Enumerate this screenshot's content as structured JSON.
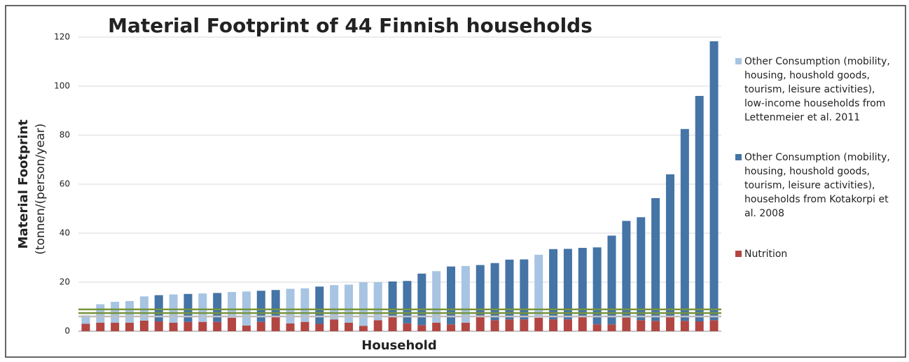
{
  "chart_data": {
    "type": "stacked_bar",
    "title": "Material Footprint of 44 Finnish households",
    "ylabel": "Material Footprint",
    "ylabel_sub": "(tonnen/(person/year)",
    "xlabel": "Household",
    "categories": [
      null,
      null,
      null,
      null,
      null,
      null,
      null,
      null,
      null,
      null,
      null,
      null,
      null,
      null,
      null,
      null,
      null,
      null,
      null,
      null,
      null,
      null,
      null,
      null,
      null,
      null,
      null,
      null,
      null,
      null,
      null,
      null,
      null,
      null,
      null,
      null,
      null,
      null,
      null,
      null,
      null,
      null,
      null,
      null
    ],
    "series": [
      {
        "name": "Other Consumption (mobility, housing, houshold goods, tourism, leisure activities), low-income households from Lettenmeier et al. 2011",
        "color": "#a7c4e2",
        "values": [
          3.5,
          7.5,
          8.5,
          8.8,
          9.9,
          null,
          11.5,
          null,
          11.6,
          null,
          10.5,
          13.9,
          null,
          null,
          14.1,
          13.7,
          null,
          14.0,
          15.5,
          17.8,
          15.5,
          null,
          null,
          null,
          21.0,
          null,
          23.1,
          null,
          null,
          null,
          null,
          25.7,
          null,
          null,
          null,
          null,
          null,
          null,
          null,
          null,
          null,
          null,
          null,
          null
        ]
      },
      {
        "name": "Other Consumption (mobility, housing, houshold goods, tourism, leisure activities), households from Kotakorpi et al. 2008",
        "color": "#4574a6",
        "values": [
          null,
          null,
          null,
          null,
          null,
          10.7,
          null,
          11.4,
          null,
          11.8,
          null,
          null,
          12.7,
          10.8,
          null,
          null,
          15.2,
          null,
          null,
          null,
          null,
          14.3,
          17.3,
          21.0,
          null,
          23.6,
          null,
          20.5,
          23.3,
          24.4,
          24.5,
          null,
          28.7,
          28.8,
          27.8,
          31.4,
          36.2,
          39.5,
          42.0,
          50.1,
          58.0,
          78.3,
          92.0,
          113.8
        ]
      },
      {
        "name": "Nutrition",
        "color": "#b24643",
        "values": [
          3,
          3.5,
          3.5,
          3.5,
          4.3,
          4,
          3.5,
          3.8,
          3.8,
          3.8,
          5.5,
          2.3,
          3.8,
          6,
          3.2,
          3.8,
          3,
          4.8,
          3.5,
          2.2,
          4.5,
          6,
          3.2,
          2.5,
          3.5,
          2.8,
          3.5,
          6.5,
          4.5,
          4.8,
          4.8,
          5.5,
          4.8,
          4.8,
          6.2,
          2.8,
          2.8,
          5.5,
          4.5,
          4.2,
          6,
          4.2,
          4,
          4.5
        ]
      }
    ],
    "reference_lines": [
      {
        "value": 8.9,
        "color": "#77933c"
      },
      {
        "value": 7.4,
        "color": "#77933c"
      },
      {
        "value": 6.0,
        "color": "#bfbfbf"
      }
    ],
    "ylim": [
      0,
      120
    ],
    "yticks": [
      0,
      20,
      40,
      60,
      80,
      100,
      120
    ],
    "grid": true
  }
}
